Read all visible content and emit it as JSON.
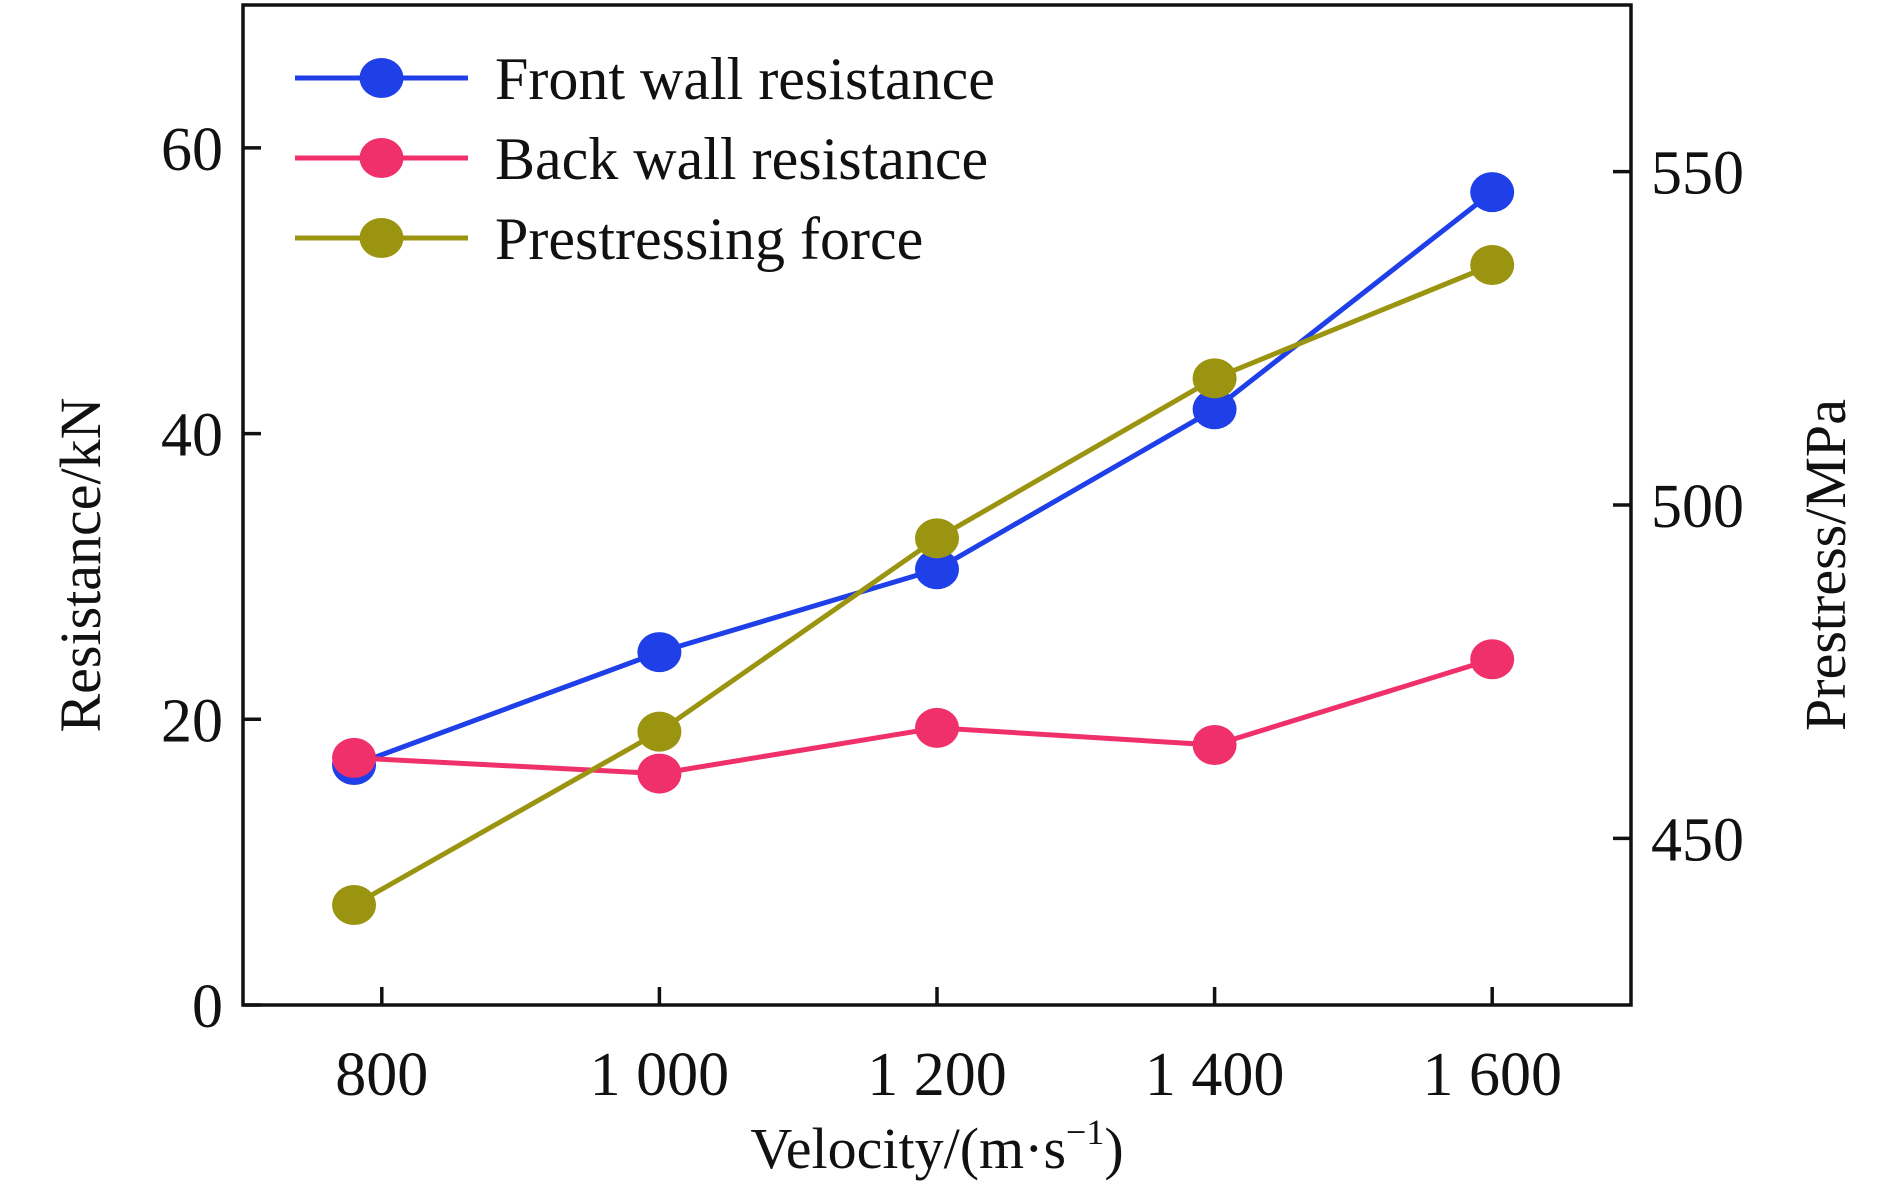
{
  "chart_data": {
    "type": "line",
    "x": [
      780,
      1000,
      1200,
      1400,
      1600
    ],
    "xlabel": "Velocity/(m·s",
    "xlabel_superscript": "−1",
    "xlabel_suffix": ")",
    "ylabel": "Resistance/kN",
    "y2label": "Prestress/MPa",
    "xticks": [
      800,
      1000,
      1200,
      1400,
      1600
    ],
    "xtick_labels": [
      "800",
      "1 000",
      "1 200",
      "1 400",
      "1 600"
    ],
    "xlim": [
      700,
      1700
    ],
    "ylim": [
      0,
      70
    ],
    "yticks": [
      0,
      20,
      40,
      60
    ],
    "ytick_labels": [
      "0",
      "20",
      "40",
      "60"
    ],
    "y2lim": [
      425,
      575
    ],
    "y2ticks": [
      450,
      500,
      550
    ],
    "y2tick_labels": [
      "450",
      "500",
      "550"
    ],
    "grid": false,
    "legend_position": "top-left",
    "series": [
      {
        "name": "Front wall resistance",
        "axis": "left",
        "color": "#1f3fe8",
        "values": [
          16.8,
          24.7,
          30.5,
          41.7,
          56.9
        ]
      },
      {
        "name": "Back wall resistance",
        "axis": "left",
        "color": "#f0306a",
        "values": [
          17.3,
          16.2,
          19.4,
          18.2,
          24.2
        ]
      },
      {
        "name": "Prestressing force",
        "axis": "right",
        "color": "#9b9410",
        "values": [
          440,
          466,
          495,
          519,
          536
        ]
      }
    ]
  }
}
